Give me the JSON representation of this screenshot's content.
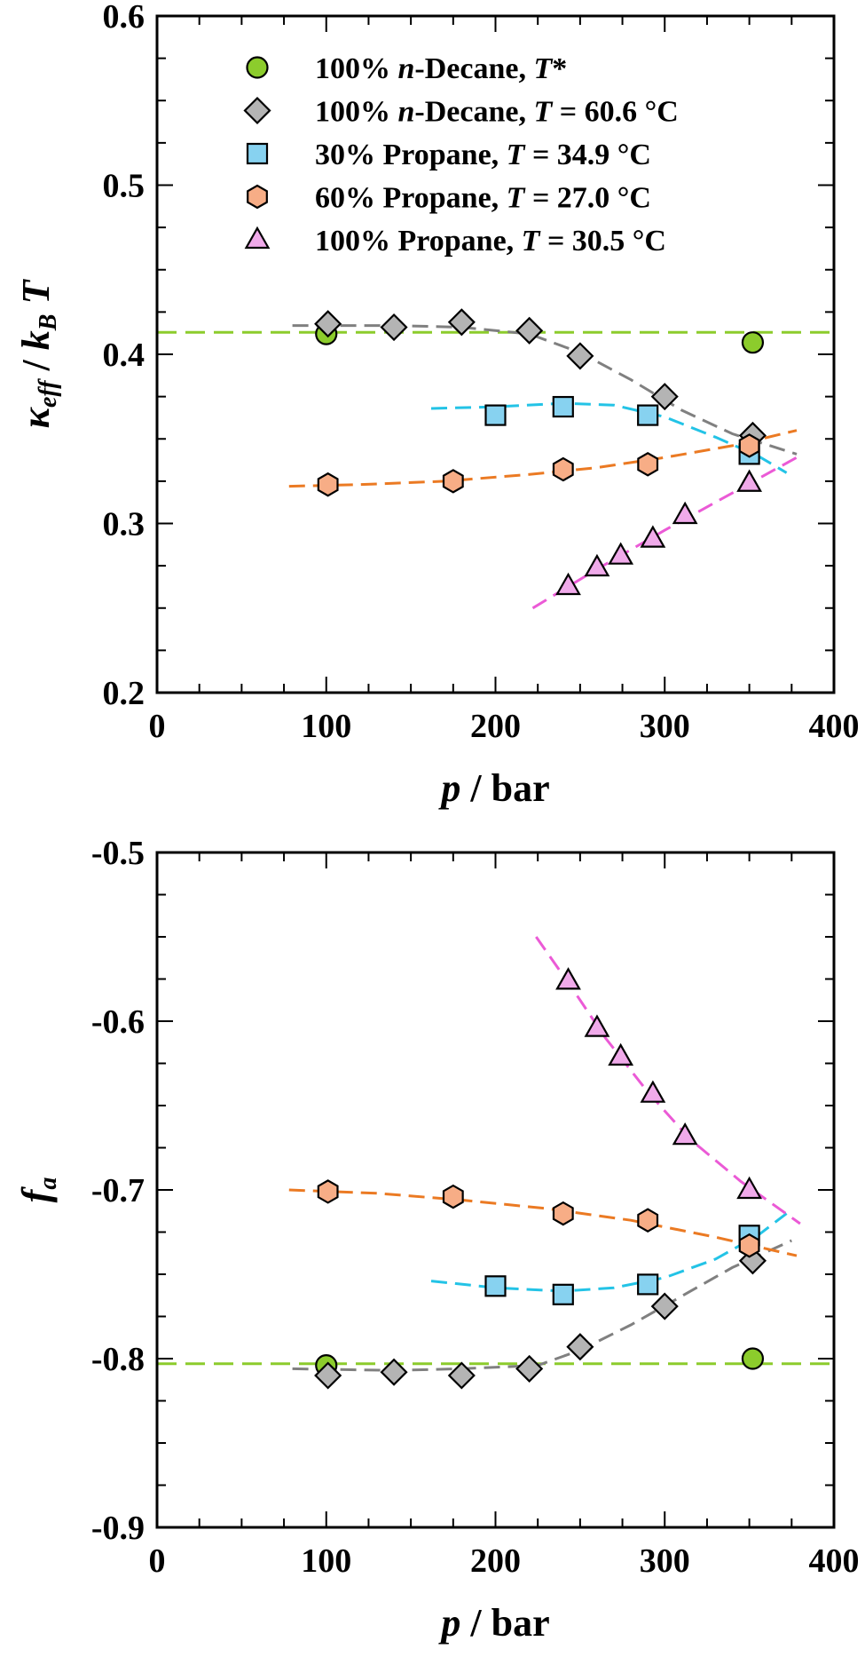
{
  "chart_data": [
    {
      "type": "scatter",
      "panel": "top",
      "ylabel": {
        "kappa": "κ",
        "eff": "eff",
        "sep": " / ",
        "k": "k",
        "B": "B",
        "T": "T"
      },
      "xlabel": {
        "p": "p",
        "rest": " / bar"
      },
      "xlim": [
        0,
        400
      ],
      "ylim": [
        0.2,
        0.6
      ],
      "xticks": [
        0,
        100,
        200,
        300,
        400
      ],
      "yticks": [
        0.2,
        0.3,
        0.4,
        0.5,
        0.6
      ],
      "x_tick_labels": [
        "0",
        "100",
        "200",
        "300",
        "400"
      ],
      "y_tick_labels": [
        "0.2",
        "0.3",
        "0.4",
        "0.5",
        "0.6"
      ],
      "hline": 0.413,
      "legend": [
        {
          "marker": "circle",
          "color": "#8ccc2c",
          "pre": "100% ",
          "it1": "n",
          "mid": "-Decane, ",
          "it2": "T",
          "post": "*"
        },
        {
          "marker": "diamond",
          "color": "#b4b4b4",
          "pre": "100% ",
          "it1": "n",
          "mid": "-Decane, ",
          "it2": "T",
          "post": " = 60.6 °C"
        },
        {
          "marker": "square",
          "color": "#87d2f0",
          "pre": "30% Propane, ",
          "it1": "",
          "mid": "",
          "it2": "T",
          "post": " = 34.9 °C"
        },
        {
          "marker": "hexagon",
          "color": "#f7ad86",
          "pre": "60% Propane, ",
          "it1": "",
          "mid": "",
          "it2": "T",
          "post": " = 27.0 °C"
        },
        {
          "marker": "triangle",
          "color": "#f0aaea",
          "pre": "100% Propane, ",
          "it1": "",
          "mid": "",
          "it2": "T",
          "post": " = 30.5 °C"
        }
      ],
      "series": [
        {
          "marker": "circle",
          "color": "#8ccc2c",
          "line_color": "#8ccc2c",
          "points": [
            [
              100,
              0.412
            ],
            [
              352,
              0.407
            ]
          ],
          "fit": []
        },
        {
          "marker": "diamond",
          "color": "#b4b4b4",
          "line_color": "#808080",
          "points": [
            [
              101,
              0.418
            ],
            [
              140,
              0.416
            ],
            [
              180,
              0.419
            ],
            [
              220,
              0.414
            ],
            [
              250,
              0.399
            ],
            [
              300,
              0.375
            ],
            [
              352,
              0.352
            ]
          ],
          "fit": [
            [
              80,
              0.417
            ],
            [
              140,
              0.417
            ],
            [
              180,
              0.416
            ],
            [
              220,
              0.412
            ],
            [
              250,
              0.401
            ],
            [
              280,
              0.385
            ],
            [
              310,
              0.367
            ],
            [
              340,
              0.353
            ],
            [
              378,
              0.341
            ]
          ]
        },
        {
          "marker": "square",
          "color": "#87d2f0",
          "line_color": "#23c3e6",
          "points": [
            [
              200,
              0.364
            ],
            [
              240,
              0.369
            ],
            [
              290,
              0.364
            ],
            [
              350,
              0.341
            ]
          ],
          "fit": [
            [
              162,
              0.368
            ],
            [
              200,
              0.369
            ],
            [
              240,
              0.371
            ],
            [
              270,
              0.37
            ],
            [
              300,
              0.363
            ],
            [
              330,
              0.351
            ],
            [
              355,
              0.34
            ],
            [
              372,
              0.33
            ]
          ]
        },
        {
          "marker": "hexagon",
          "color": "#f7ad86",
          "line_color": "#eb7a23",
          "points": [
            [
              101,
              0.323
            ],
            [
              175,
              0.325
            ],
            [
              240,
              0.332
            ],
            [
              290,
              0.335
            ],
            [
              350,
              0.346
            ]
          ],
          "fit": [
            [
              78,
              0.322
            ],
            [
              120,
              0.323
            ],
            [
              170,
              0.325
            ],
            [
              220,
              0.329
            ],
            [
              260,
              0.333
            ],
            [
              300,
              0.339
            ],
            [
              340,
              0.346
            ],
            [
              378,
              0.355
            ]
          ]
        },
        {
          "marker": "triangle",
          "color": "#f0aaea",
          "line_color": "#eb5ad6",
          "points": [
            [
              243,
              0.263
            ],
            [
              260,
              0.274
            ],
            [
              274,
              0.281
            ],
            [
              293,
              0.291
            ],
            [
              312,
              0.305
            ],
            [
              350,
              0.324
            ]
          ],
          "fit": [
            [
              222,
              0.25
            ],
            [
              260,
              0.273
            ],
            [
              300,
              0.296
            ],
            [
              340,
              0.318
            ],
            [
              378,
              0.339
            ]
          ]
        }
      ]
    },
    {
      "type": "scatter",
      "panel": "bottom",
      "ylabel": {
        "f": "f",
        "a": "a"
      },
      "xlabel": {
        "p": "p",
        "rest": " / bar"
      },
      "xlim": [
        0,
        400
      ],
      "ylim": [
        -0.9,
        -0.5
      ],
      "xticks": [
        0,
        100,
        200,
        300,
        400
      ],
      "yticks": [
        -0.9,
        -0.8,
        -0.7,
        -0.6,
        -0.5
      ],
      "x_tick_labels": [
        "0",
        "100",
        "200",
        "300",
        "400"
      ],
      "y_tick_labels": [
        "-0.9",
        "-0.8",
        "-0.7",
        "-0.6",
        "-0.5"
      ],
      "hline": -0.803,
      "series": [
        {
          "marker": "circle",
          "color": "#8ccc2c",
          "line_color": "#8ccc2c",
          "points": [
            [
              100,
              -0.804
            ],
            [
              352,
              -0.8
            ]
          ],
          "fit": []
        },
        {
          "marker": "diamond",
          "color": "#b4b4b4",
          "line_color": "#808080",
          "points": [
            [
              101,
              -0.81
            ],
            [
              140,
              -0.808
            ],
            [
              180,
              -0.81
            ],
            [
              220,
              -0.806
            ],
            [
              250,
              -0.793
            ],
            [
              300,
              -0.769
            ],
            [
              352,
              -0.742
            ]
          ],
          "fit": [
            [
              80,
              -0.806
            ],
            [
              140,
              -0.807
            ],
            [
              180,
              -0.806
            ],
            [
              225,
              -0.804
            ],
            [
              250,
              -0.795
            ],
            [
              280,
              -0.78
            ],
            [
              310,
              -0.763
            ],
            [
              340,
              -0.746
            ],
            [
              375,
              -0.73
            ]
          ]
        },
        {
          "marker": "square",
          "color": "#87d2f0",
          "line_color": "#23c3e6",
          "points": [
            [
              200,
              -0.757
            ],
            [
              240,
              -0.762
            ],
            [
              290,
              -0.756
            ],
            [
              350,
              -0.727
            ]
          ],
          "fit": [
            [
              162,
              -0.754
            ],
            [
              200,
              -0.758
            ],
            [
              240,
              -0.76
            ],
            [
              270,
              -0.758
            ],
            [
              300,
              -0.752
            ],
            [
              330,
              -0.741
            ],
            [
              355,
              -0.727
            ],
            [
              372,
              -0.714
            ]
          ]
        },
        {
          "marker": "hexagon",
          "color": "#f7ad86",
          "line_color": "#eb7a23",
          "points": [
            [
              101,
              -0.701
            ],
            [
              175,
              -0.704
            ],
            [
              240,
              -0.714
            ],
            [
              290,
              -0.718
            ],
            [
              350,
              -0.733
            ]
          ],
          "fit": [
            [
              78,
              -0.7
            ],
            [
              130,
              -0.702
            ],
            [
              180,
              -0.706
            ],
            [
              230,
              -0.711
            ],
            [
              280,
              -0.718
            ],
            [
              330,
              -0.728
            ],
            [
              378,
              -0.739
            ]
          ]
        },
        {
          "marker": "triangle",
          "color": "#f0aaea",
          "line_color": "#eb5ad6",
          "points": [
            [
              243,
              -0.576
            ],
            [
              260,
              -0.604
            ],
            [
              274,
              -0.621
            ],
            [
              293,
              -0.643
            ],
            [
              312,
              -0.668
            ],
            [
              350,
              -0.7
            ]
          ],
          "fit": [
            [
              224,
              -0.55
            ],
            [
              245,
              -0.58
            ],
            [
              265,
              -0.61
            ],
            [
              290,
              -0.642
            ],
            [
              315,
              -0.67
            ],
            [
              345,
              -0.695
            ],
            [
              380,
              -0.72
            ]
          ]
        }
      ]
    }
  ]
}
